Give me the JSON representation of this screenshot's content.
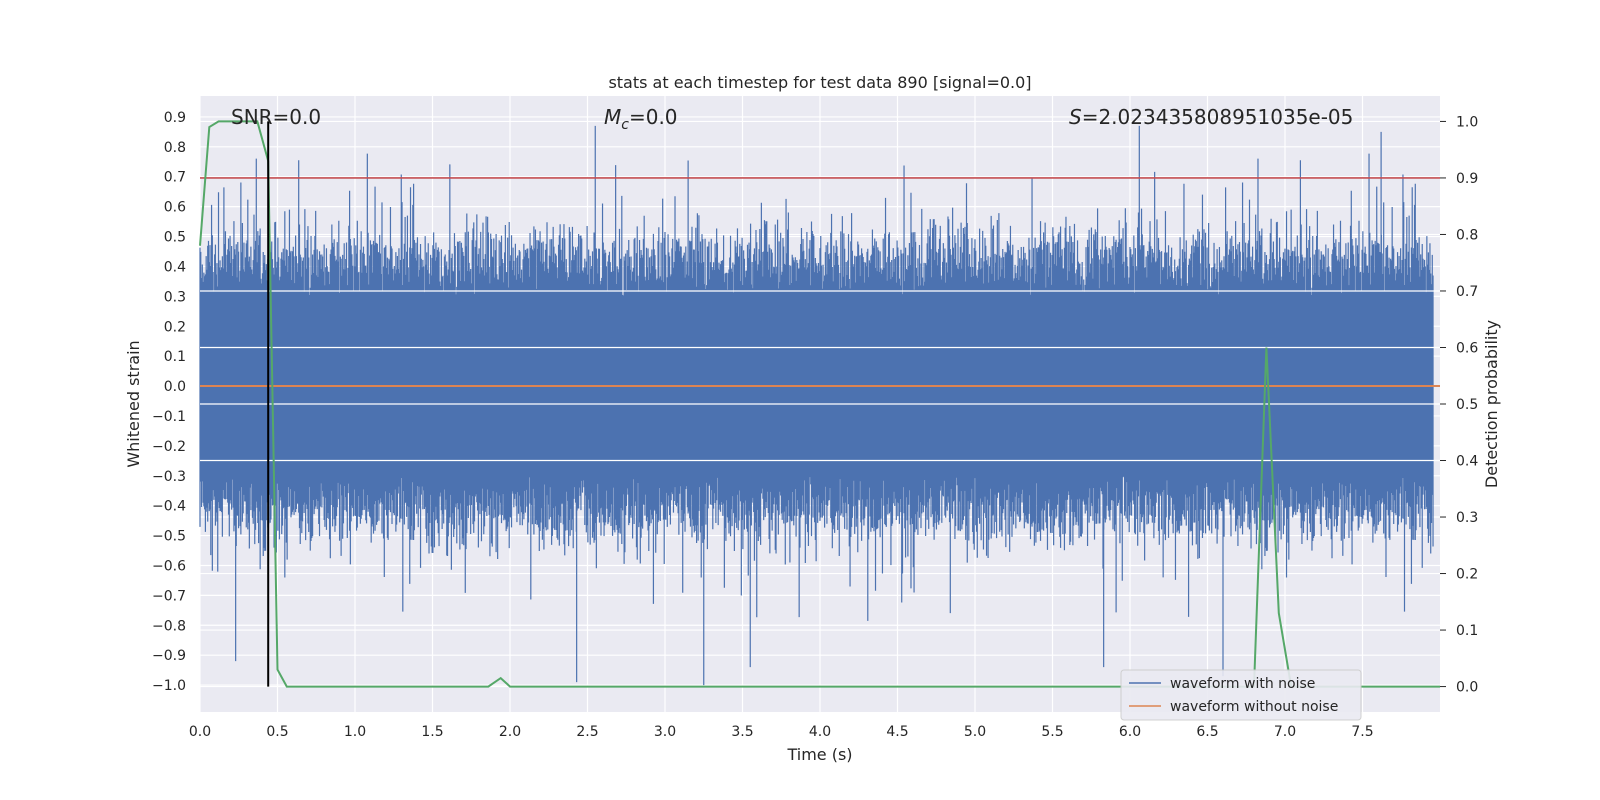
{
  "chart_data": {
    "type": "line",
    "title": "stats at each timestep for test data 890 [signal=0.0]",
    "xlabel": "Time (s)",
    "ylabel": "Whitened strain",
    "ylabel_right": "Detection probability",
    "xlim": [
      0.0,
      8.0
    ],
    "ylim": [
      -1.09,
      0.97
    ],
    "ylim_right": [
      -0.045,
      1.045
    ],
    "xticks": [
      "0.0",
      "0.5",
      "1.0",
      "1.5",
      "2.0",
      "2.5",
      "3.0",
      "3.5",
      "4.0",
      "4.5",
      "5.0",
      "5.5",
      "6.0",
      "6.5",
      "7.0",
      "7.5"
    ],
    "yticks_left": [
      "0.9",
      "0.8",
      "0.7",
      "0.6",
      "0.5",
      "0.4",
      "0.3",
      "0.2",
      "0.1",
      "0.0",
      "−0.1",
      "−0.2",
      "−0.3",
      "−0.4",
      "−0.5",
      "−0.6",
      "−0.7",
      "−0.8",
      "−0.9",
      "−1.0"
    ],
    "yticks_right": [
      "1.0",
      "0.9",
      "0.8",
      "0.7",
      "0.6",
      "0.5",
      "0.4",
      "0.3",
      "0.2",
      "0.1",
      "0.0"
    ],
    "annotations": {
      "snr": "SNR=0.0",
      "mc": "=0.0",
      "mc_symbol": "M",
      "mc_sub": "c",
      "s_symbol": "S",
      "s": "=2.023435808951035e-05"
    },
    "threshold": 0.9,
    "vline_time": 0.44,
    "series": [
      {
        "name": "waveform with noise",
        "color": "#4c72b0",
        "description": "whitened noise, roughly uniform amplitude",
        "envelope_typical": [
          -0.45,
          0.45
        ],
        "peaks": [
          {
            "x": 2.55,
            "y": 0.87
          },
          {
            "x": 6.06,
            "y": 0.87
          },
          {
            "x": 7.62,
            "y": 0.85
          },
          {
            "x": 3.25,
            "y": -1.0
          },
          {
            "x": 2.43,
            "y": -0.99
          },
          {
            "x": 6.6,
            "y": -0.97
          },
          {
            "x": 5.83,
            "y": -0.94
          },
          {
            "x": 3.55,
            "y": -0.94
          },
          {
            "x": 0.23,
            "y": -0.92
          }
        ]
      },
      {
        "name": "waveform without noise",
        "color": "#dd8452",
        "x": [
          0.0,
          8.0
        ],
        "y": [
          0.0,
          0.0
        ]
      },
      {
        "name": "detection probability",
        "color": "#55a868",
        "axis": "right",
        "x": [
          0.0,
          0.06,
          0.12,
          0.2,
          0.3,
          0.37,
          0.44,
          0.5,
          0.56,
          1.0,
          1.86,
          1.94,
          2.0,
          3.0,
          5.0,
          6.0,
          6.8,
          6.88,
          6.96,
          7.04,
          8.0
        ],
        "y": [
          0.78,
          0.99,
          1.0,
          1.0,
          1.0,
          1.0,
          0.93,
          0.03,
          0.0,
          0.0,
          0.0,
          0.015,
          0.0,
          0.0,
          0.0,
          0.0,
          0.0,
          0.6,
          0.13,
          0.0,
          0.0
        ]
      }
    ],
    "legend": {
      "placement": "lower-right",
      "entries": [
        {
          "label": "waveform with noise",
          "color": "#4c72b0"
        },
        {
          "label": "waveform without noise",
          "color": "#dd8452"
        }
      ]
    },
    "colors": {
      "background": "#eaeaf2",
      "grid": "#ffffff",
      "threshold": "#c44e52",
      "vline": "#000000"
    }
  }
}
